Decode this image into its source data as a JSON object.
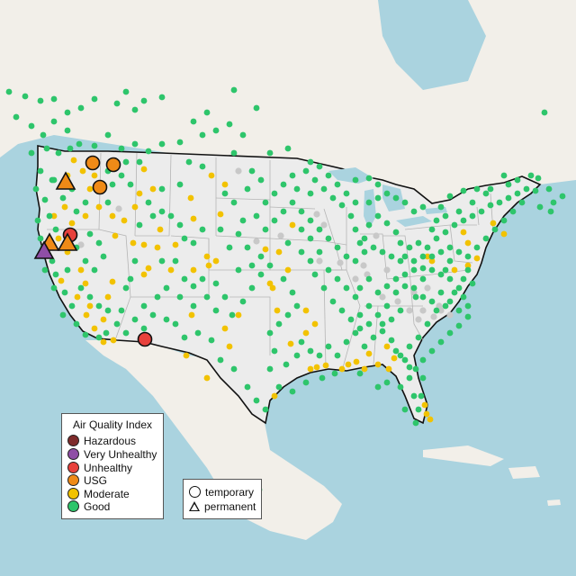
{
  "legend": {
    "title": "Air Quality Index",
    "categories": [
      {
        "label": "Hazardous",
        "color": "#7e2b2b"
      },
      {
        "label": "Very Unhealthy",
        "color": "#8f4ea6"
      },
      {
        "label": "Unhealthy",
        "color": "#e8413c"
      },
      {
        "label": "USG",
        "color": "#ef8a17"
      },
      {
        "label": "Moderate",
        "color": "#f2c200"
      },
      {
        "label": "Good",
        "color": "#2ec56b"
      }
    ],
    "monitor_types": [
      {
        "label": "temporary",
        "shape": "circle"
      },
      {
        "label": "permanent",
        "shape": "triangle"
      }
    ]
  },
  "map": {
    "region": "Contiguous United States",
    "colors": {
      "water": "#aad3df",
      "land": "#f2efe9",
      "us_land": "#ececec",
      "border": "#111111",
      "state_lines": "#b5b5b5",
      "offline_monitor": "#c8c8c8"
    }
  }
}
